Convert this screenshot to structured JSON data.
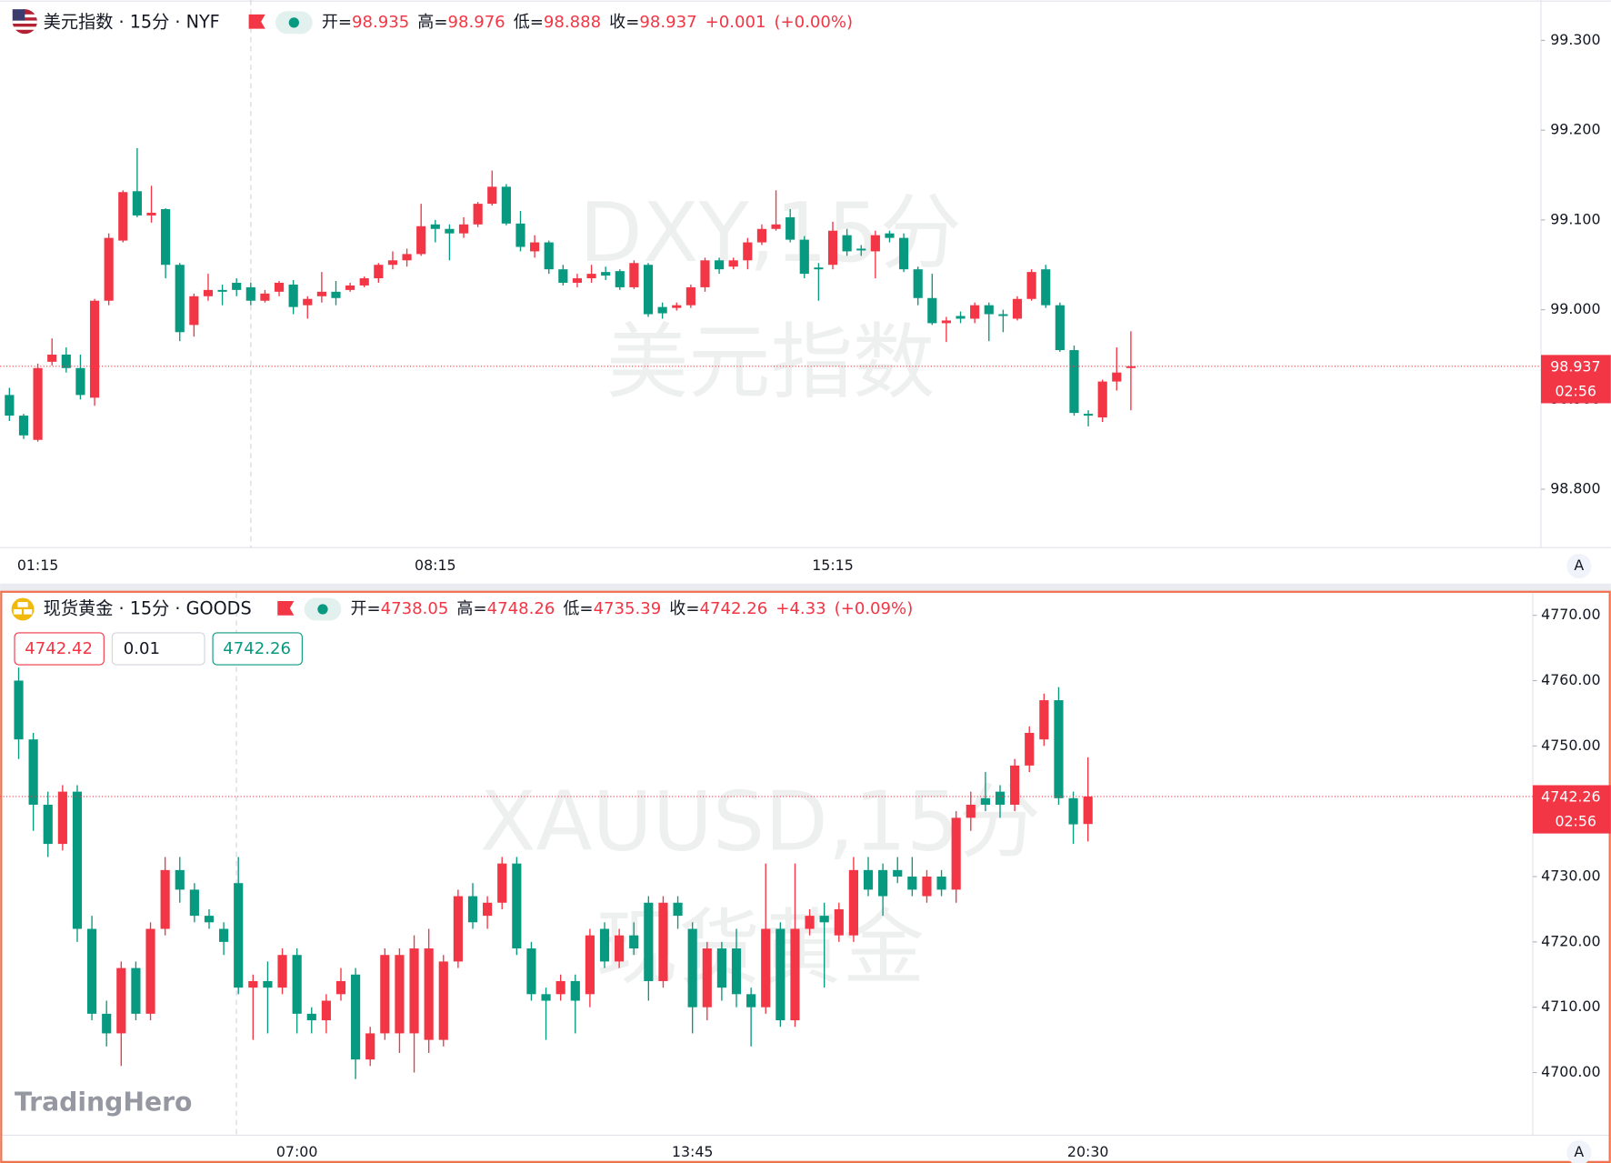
{
  "chart_data": [
    {
      "type": "candlestick",
      "title": "美元指数 · 15分 · NYF",
      "legend": {
        "open_label": "开=",
        "open": 98.935,
        "high_label": "高=",
        "high": 98.976,
        "low_label": "低=",
        "low": 98.888,
        "close_label": "收=",
        "close": 98.937,
        "change": "+0.001",
        "change_pct": "(+0.00%)"
      },
      "watermark": [
        "DXY,15分",
        "美元指数"
      ],
      "up_color": "#f23645",
      "down_color": "#089981",
      "x": [
        "00:45",
        "01:00",
        "01:15",
        "01:30",
        "01:45",
        "02:00",
        "02:15",
        "02:30",
        "02:45",
        "03:00",
        "03:15",
        "03:30",
        "03:45",
        "04:00",
        "04:15",
        "04:30",
        "04:45",
        "05:00",
        "05:15",
        "05:30",
        "05:45",
        "06:00",
        "06:15",
        "06:30",
        "06:45",
        "07:00",
        "07:15",
        "07:30",
        "07:45",
        "08:00",
        "08:15",
        "08:30",
        "08:45",
        "09:00",
        "09:15",
        "09:30",
        "09:45",
        "10:00",
        "10:15",
        "10:30",
        "10:45",
        "11:00",
        "11:15",
        "11:30",
        "11:45",
        "12:00",
        "12:15",
        "12:30",
        "12:45",
        "13:00",
        "13:15",
        "13:30",
        "13:45",
        "14:00",
        "14:15",
        "14:30",
        "14:45",
        "15:00",
        "15:15",
        "15:30",
        "15:45",
        "16:00",
        "16:15",
        "16:30",
        "16:45",
        "17:00",
        "17:15",
        "17:30",
        "17:45",
        "18:00",
        "18:15",
        "18:30",
        "18:45",
        "19:00",
        "19:15",
        "19:30",
        "19:45",
        "20:00",
        "20:15",
        "20:30"
      ],
      "open": [
        98.905,
        98.882,
        98.855,
        98.942,
        98.95,
        98.935,
        98.902,
        99.01,
        99.077,
        99.132,
        99.105,
        99.112,
        99.05,
        98.983,
        99.015,
        99.022,
        99.03,
        99.025,
        99.01,
        99.02,
        99.028,
        99.005,
        99.015,
        99.02,
        99.022,
        99.027,
        99.035,
        99.05,
        99.055,
        99.062,
        99.095,
        99.09,
        99.085,
        99.095,
        99.118,
        99.137,
        99.096,
        99.065,
        99.075,
        99.045,
        99.03,
        99.035,
        99.042,
        99.043,
        99.025,
        99.05,
        99.003,
        99.002,
        99.005,
        99.025,
        99.055,
        99.048,
        99.055,
        99.075,
        99.09,
        99.103,
        99.078,
        99.047,
        99.05,
        99.083,
        99.068,
        99.065,
        99.085,
        99.08,
        99.045,
        99.013,
        98.985,
        98.993,
        98.99,
        99.005,
        98.995,
        98.99,
        99.012,
        99.045,
        99.005,
        98.955,
        98.884,
        98.88,
        98.92,
        98.935
      ],
      "high": [
        98.913,
        98.884,
        98.94,
        98.968,
        98.958,
        98.95,
        99.012,
        99.085,
        99.133,
        99.18,
        99.138,
        99.113,
        99.052,
        99.018,
        99.04,
        99.028,
        99.035,
        99.03,
        99.022,
        99.032,
        99.033,
        99.015,
        99.042,
        99.032,
        99.03,
        99.037,
        99.052,
        99.065,
        99.068,
        99.118,
        99.1,
        99.095,
        99.103,
        99.12,
        99.155,
        99.14,
        99.11,
        99.083,
        99.077,
        99.05,
        99.04,
        99.05,
        99.048,
        99.045,
        99.055,
        99.052,
        99.008,
        99.008,
        99.028,
        99.058,
        99.058,
        99.058,
        99.08,
        99.095,
        99.133,
        99.112,
        99.082,
        99.052,
        99.098,
        99.09,
        99.072,
        99.088,
        99.088,
        99.085,
        99.048,
        99.04,
        98.992,
        98.998,
        99.008,
        99.008,
        99.0,
        99.015,
        99.045,
        99.05,
        99.008,
        98.96,
        98.888,
        98.922,
        98.958,
        98.976
      ],
      "low": [
        98.876,
        98.856,
        98.853,
        98.938,
        98.93,
        98.9,
        98.893,
        99.005,
        99.075,
        99.103,
        99.097,
        99.035,
        98.965,
        98.97,
        99.01,
        99.005,
        99.015,
        99.005,
        99.008,
        99.015,
        98.995,
        98.99,
        99.008,
        99.005,
        99.02,
        99.025,
        99.03,
        99.045,
        99.048,
        99.06,
        99.075,
        99.055,
        99.08,
        99.092,
        99.116,
        99.094,
        99.065,
        99.058,
        99.04,
        99.027,
        99.025,
        99.03,
        99.033,
        99.022,
        99.023,
        98.992,
        98.99,
        98.999,
        99.002,
        99.02,
        99.04,
        99.045,
        99.045,
        99.072,
        99.088,
        99.075,
        99.035,
        99.01,
        99.045,
        99.06,
        99.06,
        99.035,
        99.075,
        99.042,
        99.005,
        98.983,
        98.964,
        98.985,
        98.985,
        98.965,
        98.975,
        98.988,
        99.01,
        99.002,
        98.953,
        98.882,
        98.87,
        98.875,
        98.91,
        98.888
      ],
      "close": [
        98.882,
        98.86,
        98.935,
        98.95,
        98.935,
        98.905,
        99.01,
        99.08,
        99.131,
        99.105,
        99.108,
        99.05,
        98.975,
        99.015,
        99.022,
        99.02,
        99.022,
        99.01,
        99.018,
        99.03,
        99.003,
        99.012,
        99.02,
        99.013,
        99.027,
        99.035,
        99.05,
        99.055,
        99.062,
        99.093,
        99.09,
        99.085,
        99.095,
        99.118,
        99.137,
        99.096,
        99.07,
        99.075,
        99.045,
        99.03,
        99.035,
        99.04,
        99.038,
        99.025,
        99.052,
        98.995,
        98.996,
        99.005,
        99.025,
        99.055,
        99.045,
        99.055,
        99.075,
        99.09,
        99.095,
        99.078,
        99.04,
        99.045,
        99.088,
        99.065,
        99.066,
        99.083,
        99.08,
        99.045,
        99.013,
        98.985,
        98.988,
        98.99,
        99.005,
        98.995,
        98.993,
        99.012,
        99.042,
        99.005,
        98.955,
        98.885,
        98.882,
        98.92,
        98.93,
        98.937
      ],
      "ylim": [
        98.735,
        99.345
      ],
      "yticks": [
        {
          "value": 98.8,
          "label": "98.800"
        },
        {
          "value": 98.9,
          "label": "98.900"
        },
        {
          "value": 99.0,
          "label": "99.000"
        },
        {
          "value": 99.1,
          "label": "99.100"
        },
        {
          "value": 99.2,
          "label": "99.200"
        },
        {
          "value": 99.3,
          "label": "99.300"
        }
      ],
      "xticks": [
        "01:15",
        "08:15",
        "15:15"
      ],
      "last_price": 98.937,
      "countdown": "02:56",
      "axis_button": "A"
    },
    {
      "type": "candlestick",
      "title": "现货黄金 · 15分 · GOODS",
      "legend": {
        "open_label": "开=",
        "open": 4738.05,
        "high_label": "高=",
        "high": 4748.26,
        "low_label": "低=",
        "low": 4735.39,
        "close_label": "收=",
        "close": 4742.26,
        "change": "+4.33",
        "change_pct": "(+0.09%)"
      },
      "watermark": [
        "XAUUSD,15分",
        "现货黄金"
      ],
      "order_panel": {
        "sell": 4742.42,
        "quantity": 0.01,
        "buy": 4742.26
      },
      "up_color": "#f23645",
      "down_color": "#089981",
      "x": [
        "02:15",
        "02:30",
        "02:45",
        "03:00",
        "03:15",
        "03:30",
        "03:45",
        "04:00",
        "04:15",
        "04:30",
        "04:45",
        "05:00",
        "05:15",
        "05:30",
        "05:45",
        "06:00",
        "06:15",
        "06:30",
        "06:45",
        "07:00",
        "07:15",
        "07:30",
        "07:45",
        "08:00",
        "08:15",
        "08:30",
        "08:45",
        "09:00",
        "09:15",
        "09:30",
        "09:45",
        "10:00",
        "10:15",
        "10:30",
        "10:45",
        "11:00",
        "11:15",
        "11:30",
        "11:45",
        "12:00",
        "12:15",
        "12:30",
        "12:45",
        "13:00",
        "13:15",
        "13:30",
        "13:45",
        "14:00",
        "14:15",
        "14:30",
        "14:45",
        "15:00",
        "15:15",
        "15:30",
        "15:45",
        "16:00",
        "16:15",
        "16:30",
        "16:45",
        "17:00",
        "17:15",
        "17:30",
        "17:45",
        "18:00",
        "18:15",
        "18:30",
        "18:45",
        "19:00",
        "19:15",
        "19:30",
        "19:45",
        "20:00",
        "20:15",
        "20:30"
      ],
      "open": [
        4760,
        4751,
        4741,
        4735,
        4743,
        4722,
        4709,
        4706,
        4716,
        4709,
        4722,
        4731,
        4728,
        4724,
        4722,
        4729,
        4713,
        4714,
        4713,
        4718,
        4709,
        4708,
        4712,
        4715,
        4702,
        4706,
        4706,
        4706,
        4705,
        4705,
        4717,
        4727,
        4724,
        4726,
        4732,
        4719,
        4712,
        4712,
        4714,
        4712,
        4722,
        4717,
        4721,
        4726,
        4714,
        4726,
        4722,
        4710,
        4719,
        4719,
        4712,
        4710,
        4722,
        4708,
        4722,
        4724,
        4721,
        4721,
        4731,
        4731,
        4731,
        4730,
        4727,
        4730,
        4728,
        4739,
        4742,
        4743,
        4741,
        4747,
        4751,
        4757,
        4742,
        4738.05
      ],
      "high": [
        4762,
        4752,
        4743,
        4744,
        4744,
        4724,
        4711,
        4717,
        4717,
        4723,
        4733,
        4733,
        4729,
        4725,
        4723,
        4733,
        4715,
        4717,
        4719,
        4719,
        4710,
        4712,
        4716,
        4716,
        4707,
        4719,
        4719,
        4721,
        4722,
        4718,
        4728,
        4729,
        4727,
        4733,
        4733,
        4720,
        4713,
        4715,
        4715,
        4722,
        4723,
        4722,
        4723,
        4727,
        4727,
        4727,
        4723,
        4720,
        4720,
        4722,
        4713,
        4732,
        4723,
        4732,
        4725,
        4726,
        4726,
        4733,
        4733,
        4732,
        4733,
        4733,
        4731,
        4731,
        4740,
        4743,
        4746,
        4744,
        4748,
        4753,
        4758,
        4759,
        4743,
        4748.26
      ],
      "low": [
        4748,
        4737,
        4733,
        4734,
        4720,
        4708,
        4704,
        4701,
        4708,
        4708,
        4721,
        4726,
        4723,
        4722,
        4718,
        4712,
        4705,
        4706,
        4712,
        4706,
        4706,
        4706,
        4711,
        4699,
        4701,
        4705,
        4703,
        4700,
        4703,
        4704,
        4716,
        4722,
        4722,
        4725,
        4718,
        4711,
        4705,
        4711,
        4706,
        4710,
        4716,
        4716,
        4718,
        4711,
        4713,
        4722,
        4706,
        4708,
        4711,
        4710,
        4704,
        4709,
        4707,
        4707,
        4721,
        4713,
        4720,
        4720,
        4727,
        4724,
        4729,
        4727,
        4726,
        4727,
        4726,
        4737,
        4740,
        4739,
        4740,
        4746,
        4750,
        4741,
        4735,
        4735.39
      ],
      "close": [
        4751,
        4741,
        4735,
        4743,
        4722,
        4709,
        4706,
        4716,
        4709,
        4722,
        4731,
        4728,
        4724,
        4723,
        4720,
        4713,
        4714,
        4713,
        4718,
        4709,
        4708,
        4711,
        4714,
        4702,
        4706,
        4718,
        4718,
        4719,
        4719,
        4717,
        4727,
        4723,
        4726,
        4732,
        4719,
        4712,
        4711,
        4714,
        4711,
        4721,
        4717,
        4721,
        4719,
        4714,
        4726,
        4724,
        4710,
        4719,
        4713,
        4712,
        4710,
        4722,
        4708,
        4722,
        4724,
        4723,
        4725,
        4731,
        4728,
        4727,
        4730,
        4728,
        4730,
        4728,
        4739,
        4741,
        4741,
        4741,
        4747,
        4752,
        4757,
        4742,
        4738,
        4742.26
      ],
      "ylim": [
        4690.4,
        4773.6
      ],
      "yticks": [
        {
          "value": 4700,
          "label": "4700.00"
        },
        {
          "value": 4710,
          "label": "4710.00"
        },
        {
          "value": 4720,
          "label": "4720.00"
        },
        {
          "value": 4730,
          "label": "4730.00"
        },
        {
          "value": 4740,
          "label": "4740.00"
        },
        {
          "value": 4750,
          "label": "4750.00"
        },
        {
          "value": 4760,
          "label": "4760.00"
        },
        {
          "value": 4770,
          "label": "4770.00"
        }
      ],
      "xticks": [
        "07:00",
        "13:45",
        "20:30"
      ],
      "last_price": 4742.26,
      "countdown": "02:56",
      "axis_button": "A"
    }
  ],
  "brand": "TradingHero"
}
